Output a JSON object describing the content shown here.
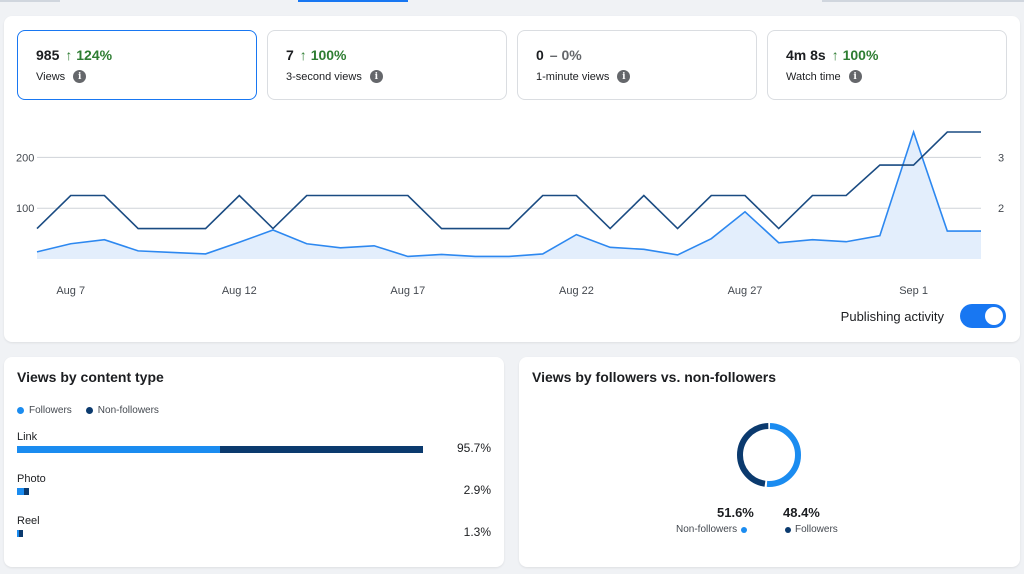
{
  "metrics": [
    {
      "value": "985",
      "change": "124%",
      "direction": "up",
      "label": "Views",
      "selected": true
    },
    {
      "value": "7",
      "change": "100%",
      "direction": "up",
      "label": "3-second views",
      "selected": false
    },
    {
      "value": "0",
      "change": "0%",
      "direction": "flat",
      "label": "1-minute views",
      "selected": false
    },
    {
      "value": "4m 8s",
      "change": "100%",
      "direction": "up",
      "label": "Watch time",
      "selected": false
    }
  ],
  "chart_data": {
    "type": "line",
    "x": [
      "Aug 6",
      "Aug 7",
      "Aug 8",
      "Aug 9",
      "Aug 10",
      "Aug 11",
      "Aug 12",
      "Aug 13",
      "Aug 14",
      "Aug 15",
      "Aug 16",
      "Aug 17",
      "Aug 18",
      "Aug 19",
      "Aug 20",
      "Aug 21",
      "Aug 22",
      "Aug 23",
      "Aug 24",
      "Aug 25",
      "Aug 26",
      "Aug 27",
      "Aug 28",
      "Aug 29",
      "Aug 30",
      "Aug 31",
      "Sep 1",
      "Sep 2",
      "Sep 3"
    ],
    "x_tick_labels": [
      "Aug 7",
      "Aug 12",
      "Aug 17",
      "Aug 22",
      "Aug 27",
      "Sep 1"
    ],
    "y_left_ticks": [
      "100",
      "200"
    ],
    "y_right_ticks": [
      "2",
      "3"
    ],
    "ylim_left": [
      0,
      250
    ],
    "ylim_right": [
      1,
      3.5
    ],
    "series": [
      {
        "axis": "left",
        "color": "#2d88f0",
        "fill": "#e3eefc",
        "values": [
          14,
          30,
          38,
          16,
          13,
          10,
          33,
          57,
          30,
          22,
          26,
          5,
          9,
          5,
          5,
          10,
          48,
          23,
          19,
          8,
          40,
          93,
          32,
          38,
          34,
          46,
          250,
          55,
          55
        ]
      },
      {
        "axis": "right",
        "color": "#1a4b82",
        "values": [
          1.6,
          2.25,
          2.25,
          1.6,
          1.6,
          1.6,
          2.25,
          1.6,
          2.25,
          2.25,
          2.25,
          2.25,
          1.6,
          1.6,
          1.6,
          2.25,
          2.25,
          1.6,
          2.25,
          1.6,
          2.25,
          2.25,
          1.6,
          2.25,
          2.25,
          2.85,
          2.85,
          3.5,
          3.5
        ]
      }
    ],
    "grid": true
  },
  "publishing": {
    "label": "Publishing activity",
    "enabled": true
  },
  "content_type": {
    "title": "Views by content type",
    "legend": [
      "Followers",
      "Non-followers"
    ],
    "colors": {
      "followers": "#1b8cf0",
      "non_followers": "#0b3a6e"
    },
    "rows": [
      {
        "label": "Link",
        "pct": "95.7%",
        "share": 0.957,
        "followers_share": 0.5
      },
      {
        "label": "Photo",
        "pct": "2.9%",
        "share": 0.029,
        "followers_share": 0.55
      },
      {
        "label": "Reel",
        "pct": "1.3%",
        "share": 0.013,
        "followers_share": 0.3
      }
    ]
  },
  "followers": {
    "title": "Views by followers vs. non-followers",
    "non_followers_pct": "51.6%",
    "non_followers_label": "Non-followers",
    "followers_pct": "48.4%",
    "followers_label": "Followers",
    "non_followers_share": 0.516
  }
}
